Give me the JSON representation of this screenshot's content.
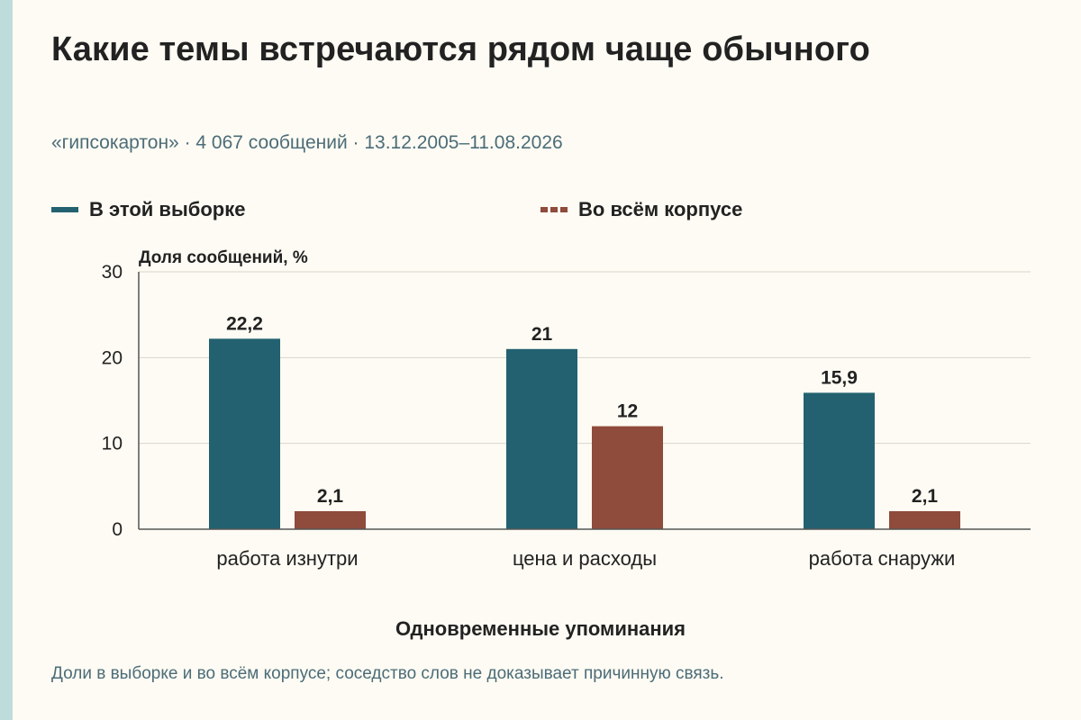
{
  "title": "Какие темы встречаются рядом чаще обычного",
  "subtitle": "«гипсокартон» · 4 067 сообщений · 13.12.2005–11.08.2026",
  "footnote": "Доли в выборке и во всём корпусе; соседство слов не доказывает причинную связь.",
  "colors": {
    "background": "#fdfbf3",
    "accent_bar": "#bfdcdd",
    "sample": "#236170",
    "corpus": "#8f4b3b",
    "grid": "#d9d6cc",
    "text": "#222222",
    "muted_text": "#4c6c78"
  },
  "chart_data": {
    "type": "bar",
    "title": "",
    "xlabel": "Одновременные упоминания",
    "ylabel": "Доля сообщений, %",
    "ylim": [
      0,
      30
    ],
    "yticks": [
      "0",
      "10",
      "20",
      "30"
    ],
    "grid": true,
    "legend_position": "top",
    "categories": [
      "работа изнутри",
      "цена и расходы",
      "работа снаружи"
    ],
    "series": [
      {
        "name": "В этой выборке",
        "color": "#236170",
        "swatch": "solid",
        "values": [
          22.2,
          21,
          15.9
        ],
        "labels": [
          "22,2",
          "21",
          "15,9"
        ]
      },
      {
        "name": "Во всём корпусе",
        "color": "#8f4b3b",
        "swatch": "dashed",
        "values": [
          2.1,
          12,
          2.1
        ],
        "labels": [
          "2,1",
          "12",
          "2,1"
        ]
      }
    ]
  }
}
